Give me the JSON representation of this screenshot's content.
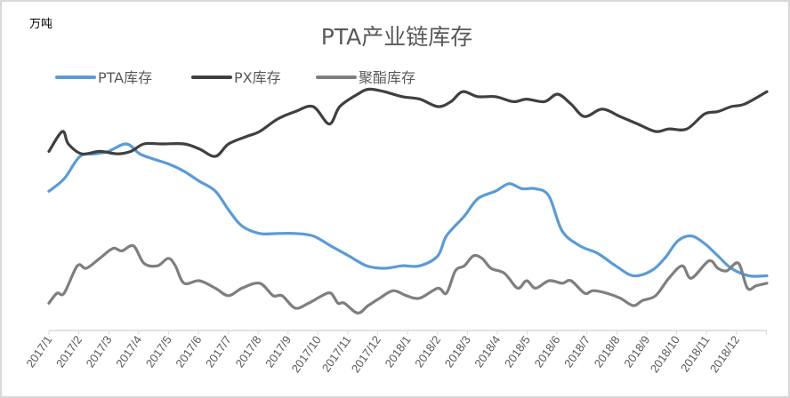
{
  "chart_data": {
    "type": "line",
    "title": "PTA产业链库存",
    "ylabel": "万吨",
    "xlabel": "",
    "x_unit": "months since 2017/1",
    "y_note": "no y-axis ticks shown; values are relative index estimates",
    "ylim": [
      0,
      100
    ],
    "xlim": [
      0,
      24.02
    ],
    "grid": false,
    "legend_position": "top-left",
    "categories": [
      "2017/1",
      "2017/2",
      "2017/3",
      "2017/4",
      "2017/5",
      "2017/6",
      "2017/7",
      "2017/8",
      "2017/9",
      "2017/10",
      "2017/11",
      "2017/12",
      "2018/1",
      "2018/2",
      "2018/3",
      "2018/4",
      "2018/5",
      "2018/6",
      "2018/7",
      "2018/8",
      "2018/9",
      "2018/10",
      "2018/11",
      "2018/12"
    ],
    "series": [
      {
        "name": "PTA库存",
        "color": "#5b9bd5",
        "points": [
          [
            0,
            56
          ],
          [
            0.51,
            61
          ],
          [
            1.04,
            70
          ],
          [
            1.55,
            71
          ],
          [
            1.99,
            72
          ],
          [
            2.59,
            75
          ],
          [
            3.04,
            71
          ],
          [
            3.48,
            69
          ],
          [
            3.99,
            67
          ],
          [
            4.52,
            64
          ],
          [
            5.03,
            60
          ],
          [
            5.57,
            56
          ],
          [
            6.04,
            48
          ],
          [
            6.46,
            42
          ],
          [
            7.05,
            39
          ],
          [
            7.65,
            39
          ],
          [
            8.24,
            39
          ],
          [
            8.84,
            38
          ],
          [
            9.43,
            34
          ],
          [
            10.03,
            30
          ],
          [
            10.63,
            26
          ],
          [
            11.22,
            25
          ],
          [
            11.82,
            26
          ],
          [
            12.41,
            26
          ],
          [
            13.01,
            30
          ],
          [
            13.3,
            38
          ],
          [
            13.9,
            46
          ],
          [
            14.35,
            53
          ],
          [
            14.94,
            56
          ],
          [
            15.39,
            59
          ],
          [
            15.83,
            57
          ],
          [
            16.28,
            57
          ],
          [
            16.73,
            54
          ],
          [
            17.17,
            40
          ],
          [
            17.77,
            34
          ],
          [
            18.36,
            31
          ],
          [
            18.96,
            26
          ],
          [
            19.55,
            22
          ],
          [
            20.15,
            24
          ],
          [
            20.6,
            29
          ],
          [
            21.04,
            36
          ],
          [
            21.49,
            38
          ],
          [
            21.93,
            35
          ],
          [
            22.38,
            30
          ],
          [
            22.83,
            25
          ],
          [
            23.42,
            22
          ],
          [
            24.02,
            22
          ]
        ]
      },
      {
        "name": "PX库存",
        "color": "#404040",
        "points": [
          [
            0,
            72
          ],
          [
            0.45,
            80
          ],
          [
            0.65,
            75
          ],
          [
            1.1,
            71
          ],
          [
            1.7,
            72
          ],
          [
            2.29,
            71
          ],
          [
            2.74,
            72
          ],
          [
            3.18,
            75
          ],
          [
            3.78,
            75
          ],
          [
            4.52,
            75
          ],
          [
            5.03,
            73
          ],
          [
            5.57,
            70
          ],
          [
            6.01,
            75
          ],
          [
            6.61,
            78
          ],
          [
            7.05,
            80
          ],
          [
            7.65,
            85
          ],
          [
            8.24,
            88
          ],
          [
            8.84,
            90
          ],
          [
            9.38,
            83
          ],
          [
            9.73,
            90
          ],
          [
            10.33,
            95
          ],
          [
            10.71,
            97
          ],
          [
            11.22,
            96
          ],
          [
            11.82,
            94
          ],
          [
            12.41,
            93
          ],
          [
            13.01,
            90
          ],
          [
            13.45,
            92
          ],
          [
            13.84,
            96
          ],
          [
            14.35,
            94
          ],
          [
            14.94,
            94
          ],
          [
            15.54,
            92
          ],
          [
            15.98,
            93
          ],
          [
            16.58,
            92
          ],
          [
            17.02,
            95
          ],
          [
            17.47,
            91
          ],
          [
            17.92,
            86
          ],
          [
            18.51,
            89
          ],
          [
            19.11,
            86
          ],
          [
            19.7,
            83
          ],
          [
            20.3,
            80
          ],
          [
            20.74,
            81
          ],
          [
            21.34,
            81
          ],
          [
            21.93,
            87
          ],
          [
            22.38,
            88
          ],
          [
            22.83,
            90
          ],
          [
            23.27,
            91
          ],
          [
            24.02,
            96
          ]
        ]
      },
      {
        "name": "聚酯库存",
        "color": "#7f7f7f",
        "points": [
          [
            0,
            11
          ],
          [
            0.27,
            15
          ],
          [
            0.51,
            15
          ],
          [
            0.95,
            26
          ],
          [
            1.25,
            25
          ],
          [
            1.7,
            29
          ],
          [
            2.14,
            33
          ],
          [
            2.44,
            32
          ],
          [
            2.83,
            34
          ],
          [
            3.18,
            27
          ],
          [
            3.63,
            26
          ],
          [
            3.99,
            29
          ],
          [
            4.23,
            26
          ],
          [
            4.52,
            19
          ],
          [
            5.03,
            20
          ],
          [
            5.57,
            17
          ],
          [
            6.01,
            14
          ],
          [
            6.46,
            17
          ],
          [
            7.05,
            19
          ],
          [
            7.5,
            14
          ],
          [
            7.8,
            14
          ],
          [
            8.24,
            9
          ],
          [
            8.69,
            11
          ],
          [
            9.14,
            14
          ],
          [
            9.43,
            15
          ],
          [
            9.67,
            11
          ],
          [
            9.88,
            11
          ],
          [
            10.33,
            7
          ],
          [
            10.68,
            10
          ],
          [
            11.07,
            13
          ],
          [
            11.52,
            16
          ],
          [
            11.96,
            14
          ],
          [
            12.41,
            13
          ],
          [
            13.01,
            17
          ],
          [
            13.3,
            15
          ],
          [
            13.6,
            24
          ],
          [
            13.9,
            26
          ],
          [
            14.2,
            30
          ],
          [
            14.49,
            29
          ],
          [
            14.79,
            25
          ],
          [
            15.24,
            23
          ],
          [
            15.68,
            17
          ],
          [
            15.98,
            20
          ],
          [
            16.28,
            17
          ],
          [
            16.73,
            20
          ],
          [
            17.17,
            19
          ],
          [
            17.47,
            20
          ],
          [
            17.92,
            15
          ],
          [
            18.21,
            16
          ],
          [
            18.66,
            15
          ],
          [
            19.11,
            13
          ],
          [
            19.55,
            10
          ],
          [
            19.85,
            12
          ],
          [
            20.3,
            14
          ],
          [
            20.74,
            21
          ],
          [
            21.19,
            26
          ],
          [
            21.49,
            21
          ],
          [
            22.08,
            28
          ],
          [
            22.38,
            25
          ],
          [
            22.68,
            24
          ],
          [
            23.07,
            27
          ],
          [
            23.37,
            17
          ],
          [
            23.67,
            18
          ],
          [
            24.02,
            19
          ]
        ]
      }
    ]
  }
}
